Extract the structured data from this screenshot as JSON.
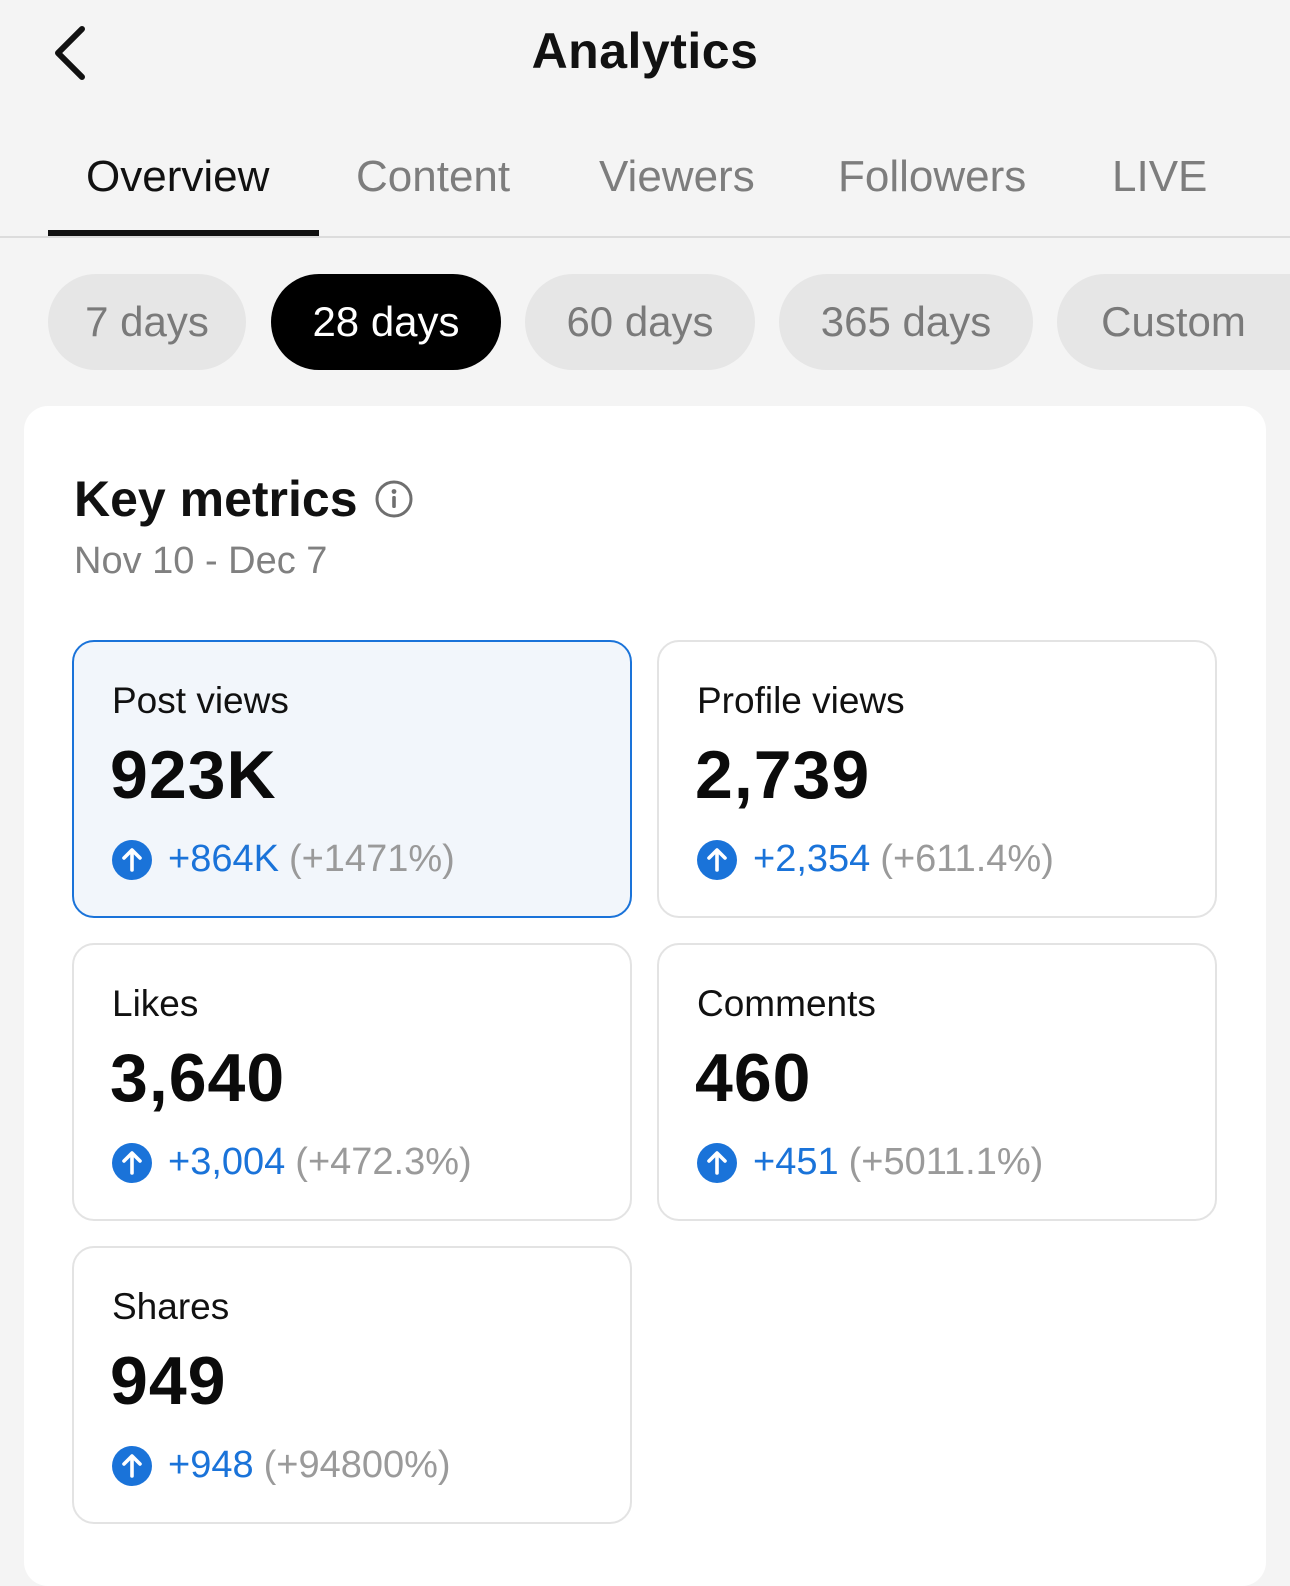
{
  "header": {
    "title": "Analytics",
    "back_icon": "chevron-left-icon"
  },
  "tabs": [
    {
      "label": "Overview",
      "active": true
    },
    {
      "label": "Content",
      "active": false
    },
    {
      "label": "Viewers",
      "active": false
    },
    {
      "label": "Followers",
      "active": false
    },
    {
      "label": "LIVE",
      "active": false
    }
  ],
  "date_ranges": [
    {
      "label": "7 days",
      "active": false
    },
    {
      "label": "28 days",
      "active": true
    },
    {
      "label": "60 days",
      "active": false
    },
    {
      "label": "365 days",
      "active": false
    },
    {
      "label": "Custom",
      "active": false
    }
  ],
  "key_metrics": {
    "title": "Key metrics",
    "info_icon": "info-icon",
    "date_range": "Nov 10 - Dec 7",
    "metrics": [
      {
        "label": "Post views",
        "value": "923K",
        "delta": "+864K",
        "percent": "(+1471%)",
        "selected": true,
        "trend_icon": "arrow-up-circle-icon"
      },
      {
        "label": "Profile views",
        "value": "2,739",
        "delta": "+2,354",
        "percent": "(+611.4%)",
        "selected": false,
        "trend_icon": "arrow-up-circle-icon"
      },
      {
        "label": "Likes",
        "value": "3,640",
        "delta": "+3,004",
        "percent": "(+472.3%)",
        "selected": false,
        "trend_icon": "arrow-up-circle-icon"
      },
      {
        "label": "Comments",
        "value": "460",
        "delta": "+451",
        "percent": "(+5011.1%)",
        "selected": false,
        "trend_icon": "arrow-up-circle-icon"
      },
      {
        "label": "Shares",
        "value": "949",
        "delta": "+948",
        "percent": "(+94800%)",
        "selected": false,
        "trend_icon": "arrow-up-circle-icon"
      }
    ]
  },
  "colors": {
    "accent_blue": "#1a73d9",
    "chip_active_bg": "#000000",
    "chip_bg": "#e6e6e6",
    "page_bg": "#f4f4f4",
    "selected_card_bg": "#f2f6fb"
  }
}
